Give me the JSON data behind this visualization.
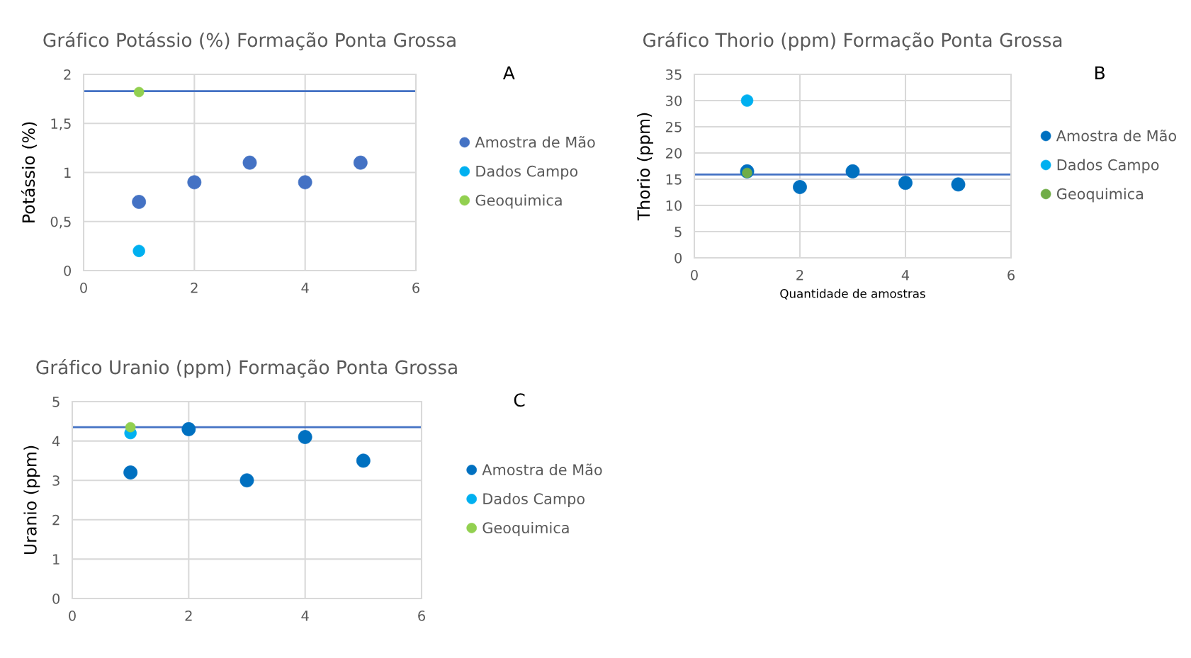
{
  "chart_data": [
    {
      "type": "scatter",
      "title": "Gráfico Potássio (%) Formação Ponta Grossa",
      "ylabel": "Potássio (%)",
      "annotations": [
        "A"
      ],
      "x": [
        1,
        2,
        3,
        4,
        5
      ],
      "series": [
        {
          "name": "Amostra de Mão",
          "color": "#4472c4",
          "values": [
            0.7,
            0.9,
            1.1,
            0.9,
            1.1
          ]
        },
        {
          "name": "Dados Campo",
          "color": "#00b0f0",
          "values": [
            0.2,
            null,
            null,
            null,
            null
          ]
        },
        {
          "name": "Geoquimica",
          "color": "#92d050",
          "values": [
            1.82,
            null,
            null,
            null,
            null
          ]
        }
      ],
      "ref_lines": [
        {
          "axis": "y",
          "value": 1.83,
          "color": "#4472c4"
        }
      ],
      "xlim": [
        0,
        6
      ],
      "xticks": [
        0,
        2,
        4,
        6
      ],
      "ylim": [
        0,
        2
      ],
      "yticks": [
        0,
        {
          "value": 0.5,
          "label": "0,5"
        },
        1,
        {
          "value": 1.5,
          "label": "1,5"
        },
        2
      ],
      "grid": true,
      "legend": "right",
      "marker": "circle"
    },
    {
      "type": "scatter",
      "title": "Gráfico Thorio (ppm) Formação Ponta Grossa",
      "xlabel": "Quantidade de amostras",
      "ylabel": "Thorio (ppm)",
      "annotations": [
        "B"
      ],
      "x": [
        1,
        2,
        3,
        4,
        5
      ],
      "series": [
        {
          "name": "Amostra de Mão",
          "color": "#0070c0",
          "values": [
            16.5,
            13.5,
            16.5,
            14.3,
            14.0
          ]
        },
        {
          "name": "Dados Campo",
          "color": "#00b0f0",
          "values": [
            30,
            null,
            null,
            null,
            null
          ]
        },
        {
          "name": "Geoquimica",
          "color": "#70ad47",
          "values": [
            16.2,
            null,
            null,
            null,
            null
          ]
        }
      ],
      "ref_lines": [
        {
          "axis": "y",
          "value": 15.9,
          "color": "#4472c4"
        }
      ],
      "xlim": [
        0,
        6
      ],
      "xticks": [
        0,
        2,
        4,
        6
      ],
      "ylim": [
        0,
        35
      ],
      "yticks": [
        0,
        5,
        10,
        15,
        20,
        25,
        30,
        35
      ],
      "grid": true,
      "legend": "right",
      "marker": "circle"
    },
    {
      "type": "scatter",
      "title": "Gráfico Uranio (ppm) Formação Ponta Grossa",
      "ylabel": "Uranio (ppm)",
      "annotations": [
        "C"
      ],
      "x": [
        1,
        2,
        3,
        4,
        5
      ],
      "series": [
        {
          "name": "Amostra de Mão",
          "color": "#0070c0",
          "values": [
            3.2,
            4.3,
            3.0,
            4.1,
            3.5
          ]
        },
        {
          "name": "Dados Campo",
          "color": "#00b0f0",
          "values": [
            4.2,
            null,
            null,
            null,
            null
          ]
        },
        {
          "name": "Geoquimica",
          "color": "#92d050",
          "values": [
            4.35,
            null,
            null,
            null,
            null
          ]
        }
      ],
      "ref_lines": [
        {
          "axis": "y",
          "value": 4.35,
          "color": "#4472c4"
        }
      ],
      "xlim": [
        0,
        6
      ],
      "xticks": [
        0,
        2,
        4,
        6
      ],
      "ylim": [
        0,
        5
      ],
      "yticks": [
        0,
        1,
        2,
        3,
        4,
        5
      ],
      "grid": true,
      "legend": "right",
      "marker": "circle"
    }
  ]
}
